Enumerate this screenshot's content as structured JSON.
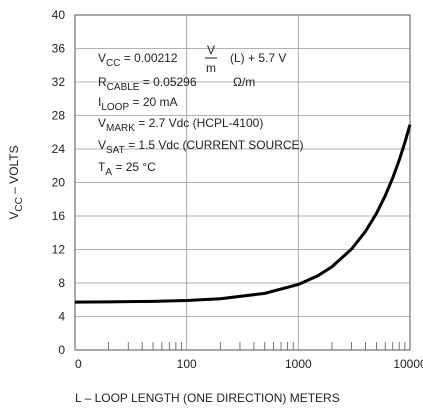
{
  "chart_data": {
    "type": "line",
    "x": [
      10,
      20,
      50,
      100,
      200,
      500,
      1000,
      1500,
      2000,
      3000,
      4000,
      5000,
      6000,
      7000,
      8000,
      9000,
      10000
    ],
    "series": [
      {
        "color": "#000000",
        "values": [
          5.72,
          5.74,
          5.81,
          5.91,
          6.12,
          6.76,
          7.82,
          8.88,
          9.94,
          12.06,
          14.18,
          16.3,
          18.42,
          20.54,
          22.66,
          24.78,
          26.9
        ]
      }
    ],
    "xlim": [
      10,
      10000
    ],
    "xscale": "log",
    "xticks": [
      {
        "value": 10,
        "label": "0"
      },
      100,
      1000,
      10000
    ],
    "xminorticks": [
      20,
      30,
      40,
      50,
      60,
      70,
      80,
      90,
      200,
      300,
      400,
      500,
      600,
      700,
      800,
      900,
      2000,
      3000,
      4000,
      5000,
      6000,
      7000,
      8000,
      9000
    ],
    "ylim": [
      0,
      40
    ],
    "yticks": [
      0,
      4,
      8,
      12,
      16,
      20,
      24,
      28,
      32,
      36,
      40
    ],
    "grid": true,
    "ylabel": {
      "main": "V",
      "sub": "CC",
      "rest": " – VOLTS"
    },
    "xlabel": "L – LOOP LENGTH (ONE DIRECTION) METERS",
    "annotations": [
      {
        "main": "V",
        "sub": "CC",
        "rest": " = 0.00212",
        "frac": [
          "V",
          "m"
        ],
        "tail": "(L) + 5.7 V"
      },
      {
        "main": "R",
        "sub": "CABLE",
        "rest": " = 0.05296",
        "tail": "Ω/m"
      },
      {
        "main": "I",
        "sub": "LOOP",
        "rest": " = 20 mA"
      },
      {
        "main": "V",
        "sub": "MARK",
        "rest": " = 2.7 Vdc (HCPL-4100)"
      },
      {
        "main": "V",
        "sub": "SAT",
        "rest": " = 1.5 Vdc (CURRENT SOURCE)"
      },
      {
        "main": "T",
        "sub": "A",
        "rest": " = 25  °C"
      }
    ]
  }
}
